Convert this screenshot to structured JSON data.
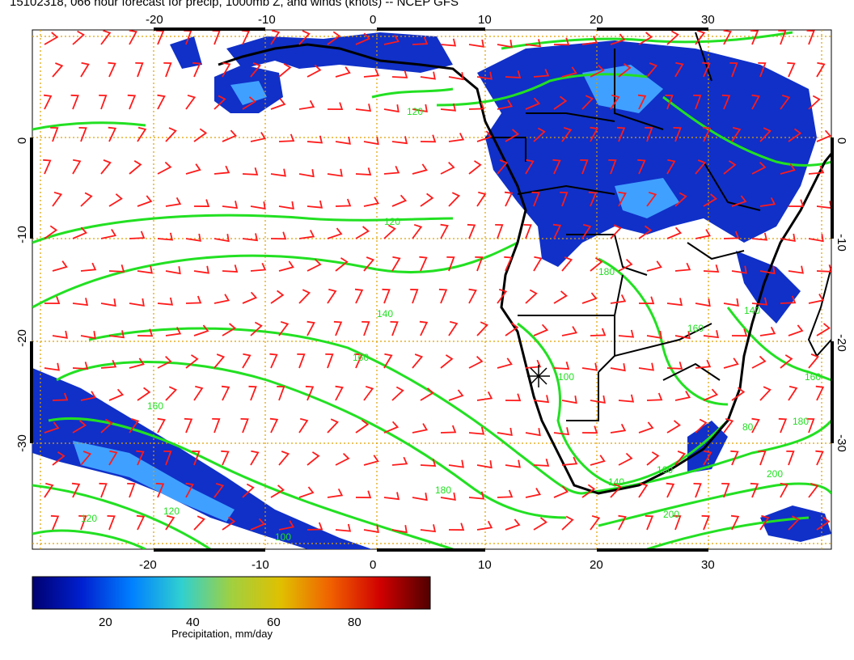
{
  "title": "15102318, 066 hour forecast for precip, 1000mb Z, and winds (knots) -- NCEP GFS",
  "axes": {
    "lon_ticks": [
      -20,
      -10,
      0,
      10,
      20,
      30
    ],
    "lat_ticks": [
      0,
      -10,
      -20,
      -30
    ],
    "lon_range": [
      -30,
      40
    ],
    "lat_range": [
      -40,
      10
    ]
  },
  "colorbar": {
    "label": "Precipitation, mm/day",
    "ticks": [
      20,
      40,
      60,
      80
    ],
    "range": [
      0,
      100
    ],
    "stops": [
      "#000070",
      "#0020d0",
      "#0080ff",
      "#30d0d0",
      "#a0d040",
      "#e0c000",
      "#f06000",
      "#d00000",
      "#500000"
    ]
  },
  "contour_labels": [
    "80",
    "100",
    "120",
    "140",
    "160",
    "180",
    "200"
  ],
  "colors": {
    "contour": "#22e022",
    "barb": "#ff1a1a",
    "grid": "#e0a000",
    "coast": "#000000",
    "precip_dark": "#1030c8",
    "precip_light": "#40a0ff"
  }
}
